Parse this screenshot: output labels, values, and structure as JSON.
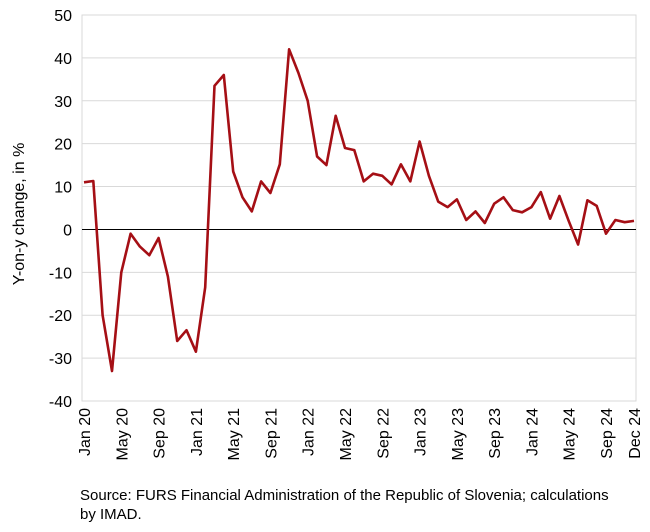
{
  "chart_data": {
    "type": "line",
    "title": "",
    "xlabel": "",
    "ylabel": "Y-on-y change, in %",
    "ylim": [
      -40,
      50
    ],
    "yticks": [
      -40,
      -30,
      -20,
      -10,
      0,
      10,
      20,
      30,
      40,
      50
    ],
    "grid": true,
    "x_tick_labels": [
      "Jan 20",
      "May 20",
      "Sep 20",
      "Jan 21",
      "May 21",
      "Sep 21",
      "Jan 22",
      "May 22",
      "Sep 22",
      "Jan 23",
      "May 23",
      "Sep 23",
      "Jan 24",
      "May 24",
      "Sep 24",
      "Dec 24"
    ],
    "x_tick_index": [
      0,
      4,
      8,
      12,
      16,
      20,
      24,
      28,
      32,
      36,
      40,
      44,
      48,
      52,
      56,
      59
    ],
    "series": [
      {
        "color": "#a50f15",
        "values": [
          11,
          11.3,
          -20,
          -33,
          -10,
          -1,
          -4,
          -6,
          -2,
          -11,
          -26,
          -23.5,
          -28.5,
          -13.5,
          33.5,
          36,
          13.5,
          7.5,
          4.2,
          11.2,
          8.5,
          15.2,
          42,
          36.5,
          30,
          17,
          15,
          26.5,
          19,
          18.5,
          11.2,
          13,
          12.5,
          10.5,
          15.2,
          11.2,
          20.5,
          12.5,
          6.5,
          5.2,
          7,
          2.2,
          4.2,
          1.5,
          6,
          7.5,
          4.5,
          4,
          5.2,
          8.7,
          2.5,
          7.8,
          2,
          -3.5,
          6.8,
          5.5,
          -1,
          2.2,
          1.7,
          2
        ]
      }
    ]
  },
  "source_note": "Source: FURS Financial Administration of the Republic of Slovenia; calculations by IMAD."
}
